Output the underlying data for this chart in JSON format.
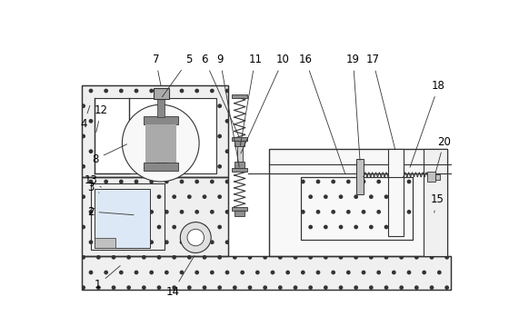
{
  "fig_width": 5.71,
  "fig_height": 3.7,
  "dpi": 100,
  "bg_color": "#ffffff",
  "line_color": "#333333",
  "lw": 0.8
}
